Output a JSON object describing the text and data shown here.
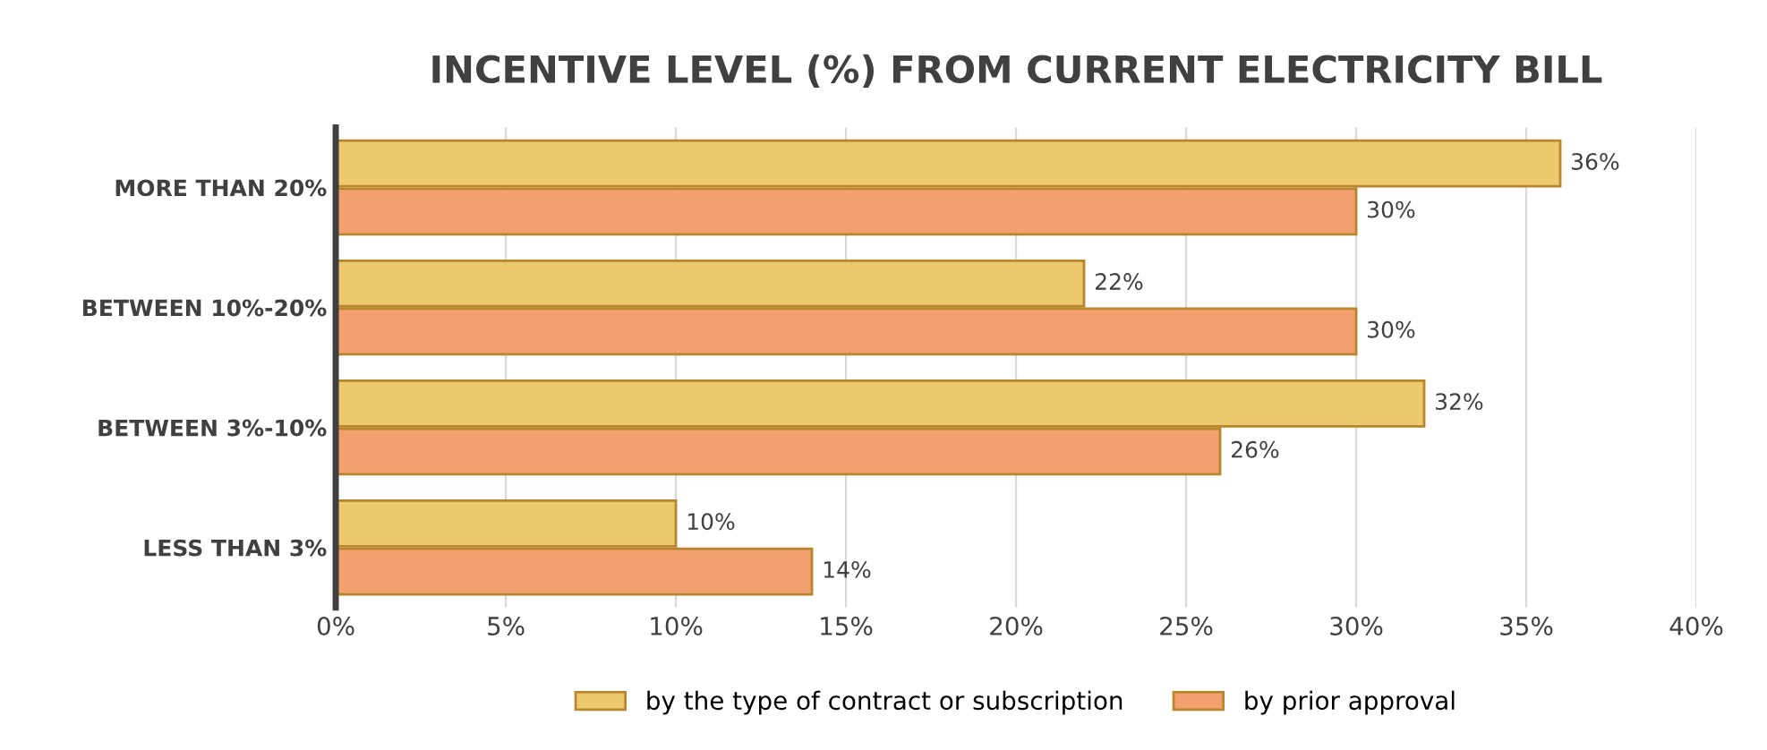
{
  "chart_data": {
    "type": "bar",
    "orientation": "horizontal",
    "title": "INCENTIVE LEVEL (%) FROM CURRENT ELECTRICITY BILL",
    "categories": [
      "MORE THAN 20%",
      "BETWEEN 10%-20%",
      "BETWEEN 3%-10%",
      "LESS THAN 3%"
    ],
    "series": [
      {
        "name": "by the type of contract or subscription",
        "color": "#ecc86e",
        "values": [
          36,
          22,
          32,
          10
        ],
        "value_labels": [
          "36%",
          "22%",
          "32%",
          "10%"
        ]
      },
      {
        "name": "by prior approval",
        "color": "#f3a06e",
        "values": [
          30,
          30,
          26,
          14
        ],
        "value_labels": [
          "30%",
          "30%",
          "26%",
          "14%"
        ]
      }
    ],
    "xlim": [
      0,
      40
    ],
    "xticks": [
      {
        "value": 0,
        "label": "0%"
      },
      {
        "value": 5,
        "label": "5%"
      },
      {
        "value": 10,
        "label": "10%"
      },
      {
        "value": 15,
        "label": "15%"
      },
      {
        "value": 20,
        "label": "20%"
      },
      {
        "value": 25,
        "label": "25%"
      },
      {
        "value": 30,
        "label": "30%"
      },
      {
        "value": 35,
        "label": "35%"
      },
      {
        "value": 40,
        "label": "40%"
      }
    ],
    "grid": "x",
    "legend": "bottom"
  }
}
